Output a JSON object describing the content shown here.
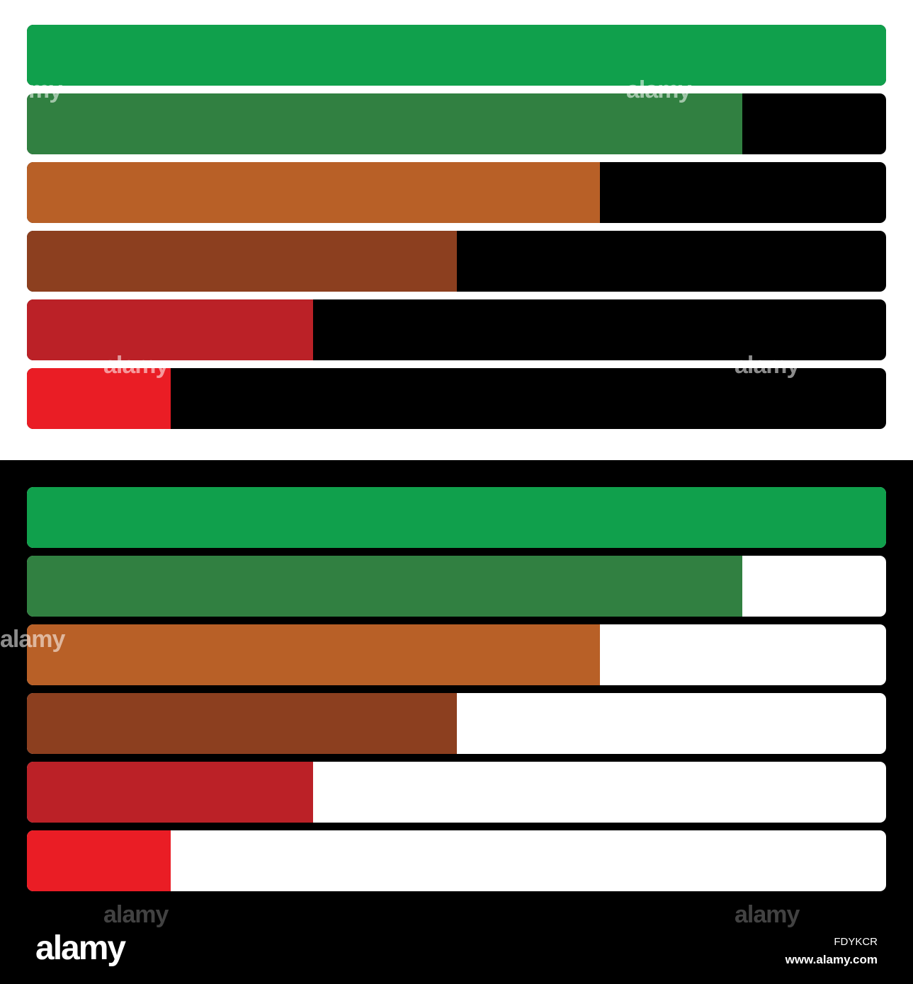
{
  "colors": {
    "light_panel_bg": "#ffffff",
    "dark_panel_bg": "#000000",
    "light_panel_track": "#000000",
    "dark_panel_track": "#ffffff"
  },
  "levels": [
    {
      "name": "level-100",
      "fraction": 1.0,
      "color": "#10a04c"
    },
    {
      "name": "level-83",
      "fraction": 0.833,
      "color": "#318041"
    },
    {
      "name": "level-67",
      "fraction": 0.667,
      "color": "#b86027"
    },
    {
      "name": "level-50",
      "fraction": 0.5,
      "color": "#8c3f1f"
    },
    {
      "name": "level-33",
      "fraction": 0.333,
      "color": "#bb2127"
    },
    {
      "name": "level-17",
      "fraction": 0.167,
      "color": "#ea1d25"
    }
  ],
  "watermark": {
    "brand": "alamy",
    "image_id": "FDYKCR",
    "url": "www.alamy.com"
  }
}
